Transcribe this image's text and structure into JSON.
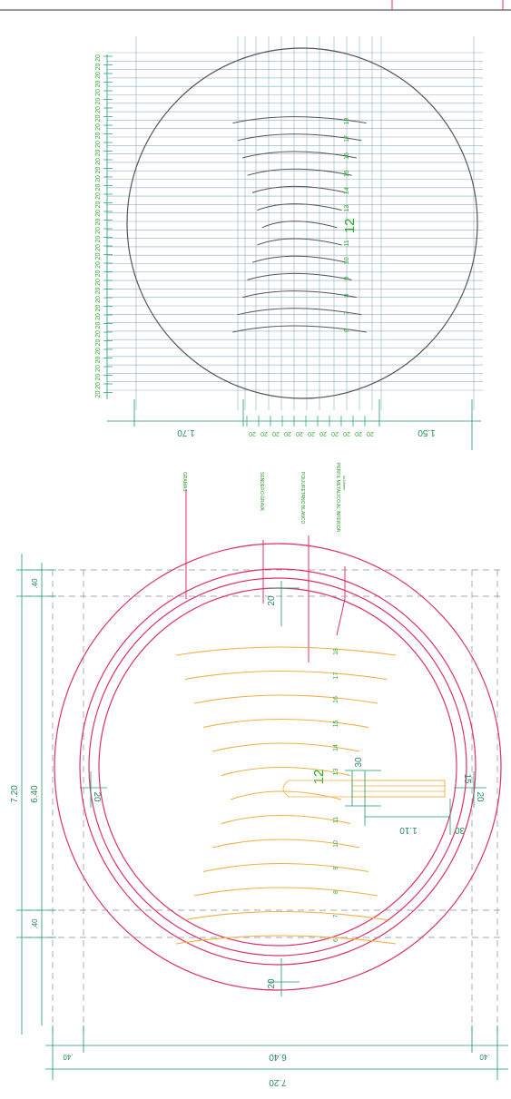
{
  "colors": {
    "ring": "#e0306a",
    "arc": "#f0b040",
    "dimension": "#1a9a6a",
    "grid": "#8ab0c8",
    "plan": "#555555",
    "text": "#2a9a2a"
  },
  "dimensions": {
    "outer": "7.20",
    "inner": "6.40",
    "edge": ".40",
    "edge_alt": ".40",
    "ring_gap": "20",
    "bench_long": "1.10",
    "bench_short": ".30",
    "bench_width": "30",
    "bench_end": "15",
    "grid_left": "1.70",
    "grid_right": "1.50",
    "grid_step": "20"
  },
  "labels": {
    "grass": "GRAMAS",
    "gravel": "SENDERO GRAVA",
    "poly": "POLIURETANO BLANCO",
    "profile": "PERFIL METALICO AL INFERIOR",
    "profile_sub": "4x1/8mm"
  },
  "rows": [
    "6",
    "7",
    "8",
    "9",
    "10",
    "11",
    "12",
    "13",
    "14",
    "15",
    "16",
    "17",
    "18"
  ],
  "center_row": "12"
}
